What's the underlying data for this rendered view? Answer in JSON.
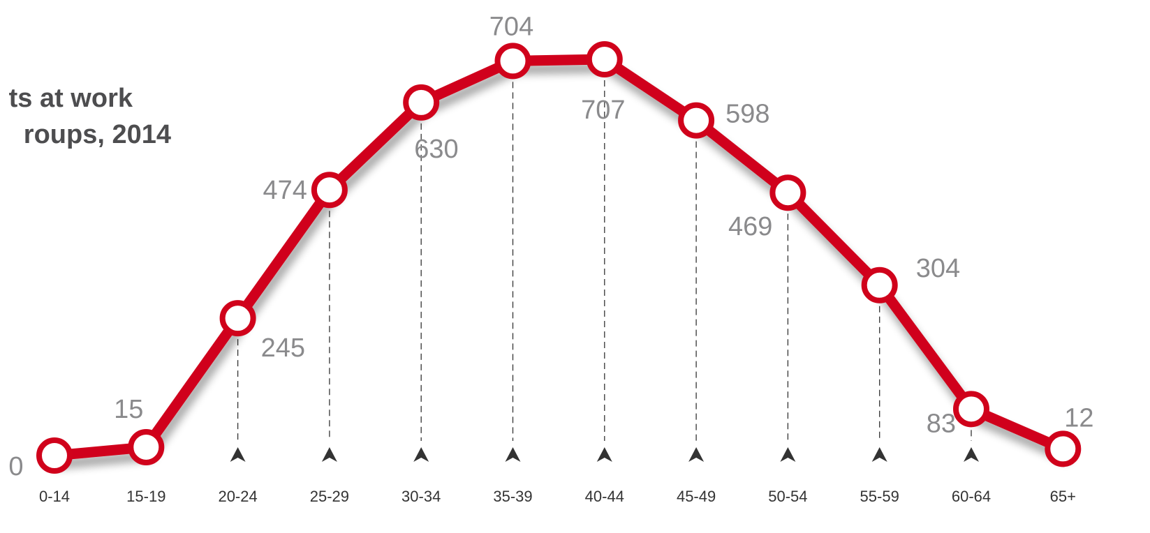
{
  "title": {
    "line1": "ts at work",
    "line2": "roups, 2014"
  },
  "colors": {
    "line": "#d0021b",
    "marker_fill": "#ffffff",
    "label": "#8a8a8c",
    "guide": "#333333"
  },
  "chart_data": {
    "type": "line",
    "title": "…ts at work …roups, 2014",
    "categories": [
      "0-14",
      "15-19",
      "20-24",
      "25-29",
      "30-34",
      "35-39",
      "40-44",
      "45-49",
      "50-54",
      "55-59",
      "60-64",
      "65+"
    ],
    "series": [
      {
        "values": [
          0,
          15,
          245,
          474,
          630,
          704,
          707,
          598,
          469,
          304,
          83,
          12
        ]
      }
    ],
    "value_labels": [
      "0",
      "15",
      "245",
      "474",
      "630",
      "704",
      "707",
      "598",
      "469",
      "304",
      "83",
      "12"
    ],
    "ylim": [
      0,
      720
    ],
    "grid": false,
    "legend": "none"
  }
}
